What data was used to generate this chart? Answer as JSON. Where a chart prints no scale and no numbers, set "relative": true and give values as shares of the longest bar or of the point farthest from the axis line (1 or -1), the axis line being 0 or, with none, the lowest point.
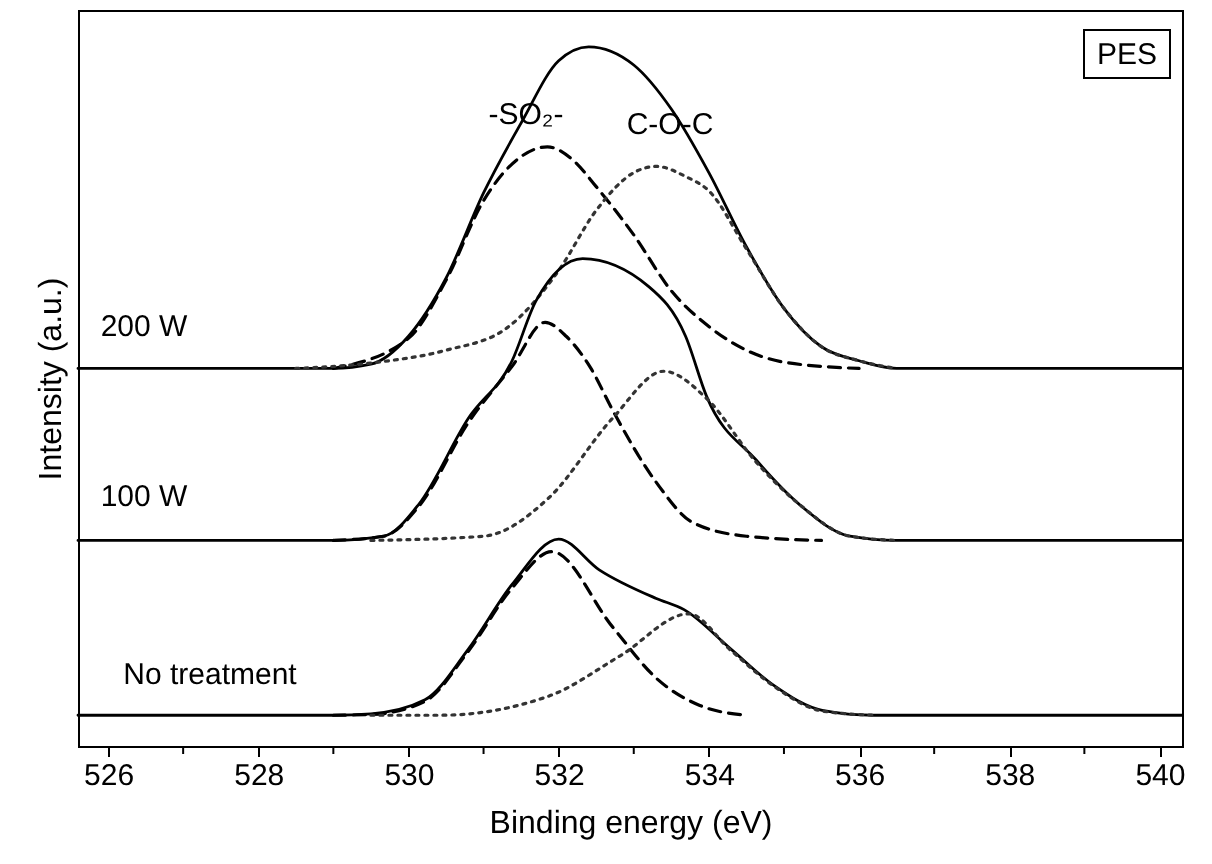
{
  "chart_data": {
    "type": "line",
    "relative": true,
    "xlabel": "Binding energy (eV)",
    "ylabel": "Intensity (a.u.)",
    "xlim": [
      525.6,
      540.3
    ],
    "xticks": [
      526,
      {
        "value": 527,
        "label": null
      },
      528,
      {
        "value": 529,
        "label": null
      },
      530,
      {
        "value": 531,
        "label": null
      },
      532,
      {
        "value": 533,
        "label": null
      },
      534,
      {
        "value": 535,
        "label": null
      },
      536,
      {
        "value": 537,
        "label": null
      },
      538,
      {
        "value": 539,
        "label": null
      },
      540
    ],
    "grid": false,
    "marker": "none",
    "annotations": [
      "200 W",
      "100 W",
      "No treatment",
      "-SO₂-",
      "C-O-C",
      "PES"
    ],
    "series": [
      {
        "color": "#000000",
        "line_style": "solid",
        "x": [
          525.6,
          529.0,
          529.5,
          530.0,
          530.5,
          531.0,
          531.5,
          532.0,
          532.4,
          533.0,
          533.5,
          534.0,
          534.5,
          535.0,
          535.5,
          536.0,
          536.5,
          540.3
        ],
        "values": [
          0.54,
          0.54,
          0.546,
          0.586,
          0.669,
          0.791,
          0.891,
          0.98,
          1.0,
          0.974,
          0.911,
          0.82,
          0.714,
          0.626,
          0.571,
          0.551,
          0.54,
          0.54
        ]
      },
      {
        "color": "#000000",
        "line_style": "dashed",
        "x": [
          529.0,
          530.0,
          530.5,
          531.0,
          531.5,
          531.85,
          532.2,
          532.5,
          533.0,
          533.5,
          534.0,
          534.5,
          535.0,
          536.0
        ],
        "values": [
          0.54,
          0.583,
          0.666,
          0.78,
          0.843,
          0.857,
          0.837,
          0.8,
          0.731,
          0.651,
          0.6,
          0.566,
          0.549,
          0.54
        ]
      },
      {
        "color": "#333333",
        "line_style": "dotted",
        "x": [
          528.5,
          529.6,
          530.5,
          531.3,
          532.0,
          532.5,
          533.0,
          533.3,
          533.7,
          534.0,
          534.5,
          535.0,
          535.5,
          536.0,
          536.5
        ],
        "values": [
          0.54,
          0.549,
          0.566,
          0.597,
          0.68,
          0.766,
          0.82,
          0.829,
          0.814,
          0.794,
          0.711,
          0.626,
          0.571,
          0.551,
          0.54
        ]
      },
      {
        "color": "#000000",
        "line_style": "solid",
        "x": [
          525.6,
          529.0,
          529.67,
          530.14,
          530.8,
          531.38,
          531.7,
          532.32,
          533.2,
          533.69,
          533.97,
          534.63,
          535.2,
          535.88,
          536.5,
          540.3
        ],
        "values": [
          0.294,
          0.294,
          0.3,
          0.346,
          0.469,
          0.551,
          0.637,
          0.697,
          0.657,
          0.586,
          0.5,
          0.409,
          0.346,
          0.3,
          0.294,
          0.294
        ]
      },
      {
        "color": "#000000",
        "line_style": "dashed",
        "x": [
          529.0,
          529.67,
          530.14,
          530.8,
          531.38,
          531.82,
          532.1,
          532.43,
          532.72,
          533.3,
          533.78,
          534.5,
          535.5
        ],
        "values": [
          0.294,
          0.3,
          0.343,
          0.463,
          0.543,
          0.606,
          0.586,
          0.54,
          0.48,
          0.377,
          0.32,
          0.3,
          0.294
        ]
      },
      {
        "color": "#333333",
        "line_style": "dotted",
        "x": [
          529.5,
          531.0,
          531.87,
          532.72,
          533.4,
          533.97,
          534.63,
          535.2,
          535.88,
          536.5
        ],
        "values": [
          0.294,
          0.3,
          0.355,
          0.469,
          0.536,
          0.497,
          0.406,
          0.346,
          0.3,
          0.294
        ]
      },
      {
        "color": "#000000",
        "line_style": "solid",
        "x": [
          525.6,
          529.0,
          529.5,
          530.22,
          530.8,
          531.38,
          532.0,
          532.54,
          533.3,
          533.67,
          534.29,
          534.86,
          535.51,
          536.2,
          540.3
        ],
        "values": [
          0.044,
          0.044,
          0.046,
          0.066,
          0.139,
          0.231,
          0.296,
          0.252,
          0.211,
          0.195,
          0.139,
          0.087,
          0.051,
          0.044,
          0.044
        ]
      },
      {
        "color": "#000000",
        "line_style": "dashed",
        "x": [
          529.0,
          529.5,
          530.22,
          530.8,
          531.38,
          531.91,
          532.72,
          533.3,
          533.88,
          534.5
        ],
        "values": [
          0.044,
          0.045,
          0.064,
          0.136,
          0.226,
          0.278,
          0.17,
          0.097,
          0.058,
          0.044
        ]
      },
      {
        "color": "#333333",
        "line_style": "dotted",
        "x": [
          529.5,
          530.42,
          531.86,
          532.82,
          533.73,
          534.29,
          534.86,
          535.51,
          536.2
        ],
        "values": [
          0.044,
          0.044,
          0.071,
          0.129,
          0.189,
          0.137,
          0.086,
          0.05,
          0.044
        ]
      }
    ]
  }
}
